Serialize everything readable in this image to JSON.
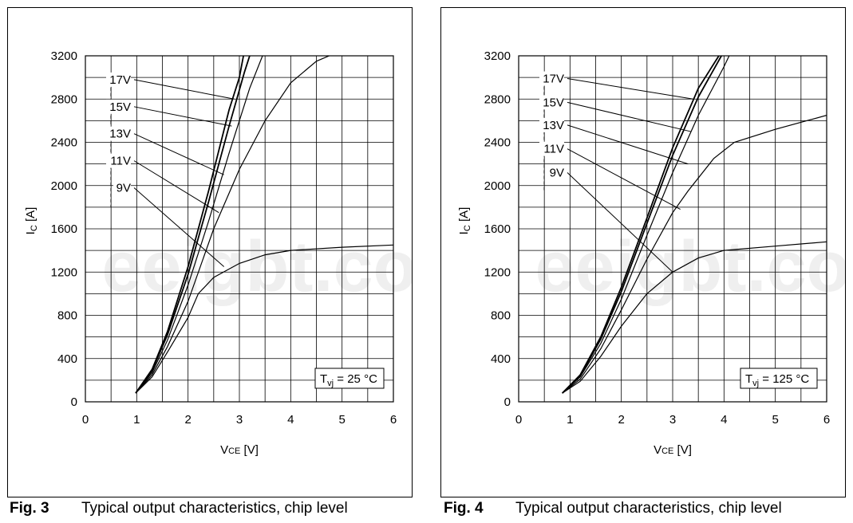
{
  "watermark": "eeigbt.com",
  "chart_data": [
    {
      "type": "line",
      "figure_label": "Fig. 3",
      "caption": "Typical output characteristics, chip level",
      "xlabel_main": "V",
      "xlabel_sub": "CE",
      "xlabel_unit": "[V]",
      "ylabel_main": "I",
      "ylabel_sub": "C",
      "ylabel_unit": "[A]",
      "xlim": [
        0,
        6
      ],
      "ylim": [
        0,
        3200
      ],
      "xticks": [
        0,
        1,
        2,
        3,
        4,
        5,
        6
      ],
      "yticks": [
        0,
        400,
        800,
        1200,
        1600,
        2000,
        2400,
        2800,
        3200
      ],
      "grid": true,
      "annotation_main": "T",
      "annotation_sub": "vj",
      "annotation_rest": " = 25 °C",
      "series": [
        {
          "name": "17V",
          "label_y": 2950,
          "leader_to": [
            2.9,
            2800
          ],
          "points": [
            [
              0.98,
              80
            ],
            [
              1.3,
              300
            ],
            [
              1.6,
              650
            ],
            [
              2.0,
              1250
            ],
            [
              2.4,
              1950
            ],
            [
              2.8,
              2700
            ],
            [
              3.0,
              3000
            ],
            [
              3.08,
              3200
            ]
          ]
        },
        {
          "name": "15V",
          "label_y": 2700,
          "leader_to": [
            2.85,
            2550
          ],
          "points": [
            [
              0.98,
              80
            ],
            [
              1.3,
              290
            ],
            [
              1.6,
              620
            ],
            [
              2.0,
              1180
            ],
            [
              2.4,
              1850
            ],
            [
              2.8,
              2550
            ],
            [
              3.1,
              3050
            ],
            [
              3.2,
              3200
            ]
          ]
        },
        {
          "name": "13V",
          "label_y": 2450,
          "leader_to": [
            2.7,
            2100
          ],
          "points": [
            [
              0.98,
              80
            ],
            [
              1.3,
              270
            ],
            [
              1.6,
              570
            ],
            [
              2.0,
              1080
            ],
            [
              2.4,
              1670
            ],
            [
              2.8,
              2300
            ],
            [
              3.2,
              2900
            ],
            [
              3.45,
              3200
            ]
          ]
        },
        {
          "name": "11V",
          "label_y": 2200,
          "leader_to": [
            2.6,
            1750
          ],
          "points": [
            [
              0.98,
              80
            ],
            [
              1.3,
              250
            ],
            [
              1.6,
              510
            ],
            [
              2.0,
              930
            ],
            [
              2.5,
              1600
            ],
            [
              3.0,
              2150
            ],
            [
              3.5,
              2600
            ],
            [
              4.0,
              2950
            ],
            [
              4.5,
              3150
            ],
            [
              4.75,
              3200
            ]
          ]
        },
        {
          "name": "9V",
          "label_y": 1950,
          "leader_to": [
            2.7,
            1250
          ],
          "points": [
            [
              0.98,
              80
            ],
            [
              1.3,
              230
            ],
            [
              1.6,
              460
            ],
            [
              2.0,
              780
            ],
            [
              2.2,
              1000
            ],
            [
              2.5,
              1150
            ],
            [
              3.0,
              1280
            ],
            [
              3.5,
              1360
            ],
            [
              4.0,
              1400
            ],
            [
              5.0,
              1430
            ],
            [
              6.0,
              1450
            ]
          ]
        }
      ]
    },
    {
      "type": "line",
      "figure_label": "Fig. 4",
      "caption": "Typical output characteristics, chip level",
      "xlabel_main": "V",
      "xlabel_sub": "CE",
      "xlabel_unit": "[V]",
      "ylabel_main": "I",
      "ylabel_sub": "C",
      "ylabel_unit": "[A]",
      "xlim": [
        0,
        6
      ],
      "ylim": [
        0,
        3200
      ],
      "xticks": [
        0,
        1,
        2,
        3,
        4,
        5,
        6
      ],
      "yticks": [
        0,
        400,
        800,
        1200,
        1600,
        2000,
        2400,
        2800,
        3200
      ],
      "grid": true,
      "annotation_main": "T",
      "annotation_sub": "vj",
      "annotation_rest": " = 125 °C",
      "series": [
        {
          "name": "17V",
          "label_y": 2960,
          "leader_to": [
            3.4,
            2800
          ],
          "points": [
            [
              0.85,
              80
            ],
            [
              1.2,
              250
            ],
            [
              1.6,
              600
            ],
            [
              2.0,
              1060
            ],
            [
              2.5,
              1700
            ],
            [
              3.0,
              2350
            ],
            [
              3.5,
              2900
            ],
            [
              3.9,
              3200
            ]
          ]
        },
        {
          "name": "15V",
          "label_y": 2740,
          "leader_to": [
            3.35,
            2500
          ],
          "points": [
            [
              0.85,
              80
            ],
            [
              1.2,
              240
            ],
            [
              1.6,
              580
            ],
            [
              2.0,
              1020
            ],
            [
              2.5,
              1650
            ],
            [
              3.0,
              2280
            ],
            [
              3.5,
              2820
            ],
            [
              3.95,
              3200
            ]
          ]
        },
        {
          "name": "13V",
          "label_y": 2530,
          "leader_to": [
            3.3,
            2200
          ],
          "points": [
            [
              0.85,
              80
            ],
            [
              1.2,
              230
            ],
            [
              1.6,
              540
            ],
            [
              2.0,
              950
            ],
            [
              2.5,
              1540
            ],
            [
              3.0,
              2120
            ],
            [
              3.5,
              2650
            ],
            [
              4.0,
              3100
            ],
            [
              4.1,
              3200
            ]
          ]
        },
        {
          "name": "11V",
          "label_y": 2310,
          "leader_to": [
            3.15,
            1780
          ],
          "points": [
            [
              0.85,
              80
            ],
            [
              1.2,
              210
            ],
            [
              1.6,
              490
            ],
            [
              2.0,
              850
            ],
            [
              2.5,
              1320
            ],
            [
              3.0,
              1750
            ],
            [
              3.3,
              1950
            ],
            [
              3.8,
              2250
            ],
            [
              4.2,
              2400
            ],
            [
              5.0,
              2520
            ],
            [
              6.0,
              2650
            ]
          ]
        },
        {
          "name": "9V",
          "label_y": 2090,
          "leader_to": [
            3.0,
            1200
          ],
          "points": [
            [
              0.85,
              80
            ],
            [
              1.2,
              190
            ],
            [
              1.6,
              420
            ],
            [
              2.0,
              700
            ],
            [
              2.5,
              1000
            ],
            [
              3.0,
              1200
            ],
            [
              3.5,
              1330
            ],
            [
              4.0,
              1400
            ],
            [
              5.0,
              1440
            ],
            [
              6.0,
              1480
            ]
          ]
        }
      ]
    }
  ]
}
